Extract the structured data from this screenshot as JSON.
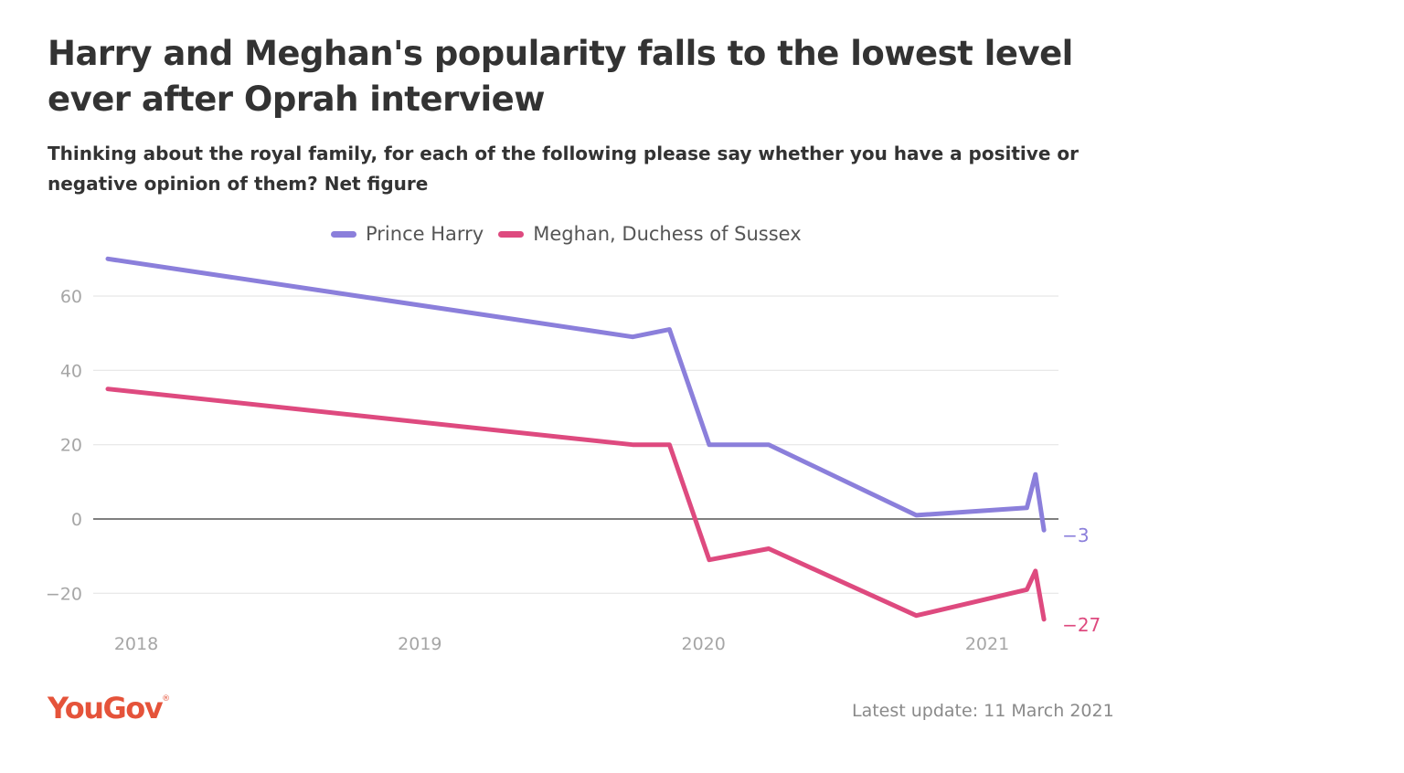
{
  "header": {
    "title": "Harry and Meghan's popularity falls to the lowest level ever after Oprah interview",
    "subtitle": "Thinking about the royal family, for each of the following please say whether you have a positive or negative opinion of them? Net figure"
  },
  "footer": {
    "logo_text": "YouGov",
    "logo_mark": "®",
    "update": "Latest update: 11 March 2021"
  },
  "colors": {
    "harry": "#8b7fdb",
    "meghan": "#de4a7f",
    "zero_line": "#555555",
    "grid": "#e6e6e6"
  },
  "chart_data": {
    "type": "line",
    "title": "Harry and Meghan's popularity falls to the lowest level ever after Oprah interview",
    "subtitle": "Thinking about the royal family, for each of the following please say whether you have a positive or negative opinion of them? Net figure",
    "xlabel": "",
    "ylabel": "",
    "x_ticks": [
      2018,
      2019,
      2020,
      2021
    ],
    "y_ticks": [
      60,
      40,
      20,
      0,
      -20
    ],
    "y_tick_labels": [
      "60",
      "40",
      "20",
      "0",
      "−20"
    ],
    "xlim": [
      2017.87,
      2021.25
    ],
    "ylim": [
      -30,
      72
    ],
    "grid": true,
    "legend": "top",
    "series": [
      {
        "name": "Prince Harry",
        "color": "#8b7fdb",
        "end_label": "−3",
        "x": [
          2017.9,
          2019.75,
          2019.88,
          2020.02,
          2020.23,
          2020.75,
          2021.14,
          2021.17,
          2021.2
        ],
        "y": [
          70,
          49,
          51,
          20,
          20,
          1,
          3,
          12,
          -3
        ]
      },
      {
        "name": "Meghan, Duchess of Sussex",
        "color": "#de4a7f",
        "end_label": "−27",
        "x": [
          2017.9,
          2019.75,
          2019.88,
          2020.02,
          2020.23,
          2020.75,
          2021.14,
          2021.17,
          2021.2
        ],
        "y": [
          35,
          20,
          20,
          -11,
          -8,
          -26,
          -19,
          -14,
          -27
        ]
      }
    ]
  }
}
